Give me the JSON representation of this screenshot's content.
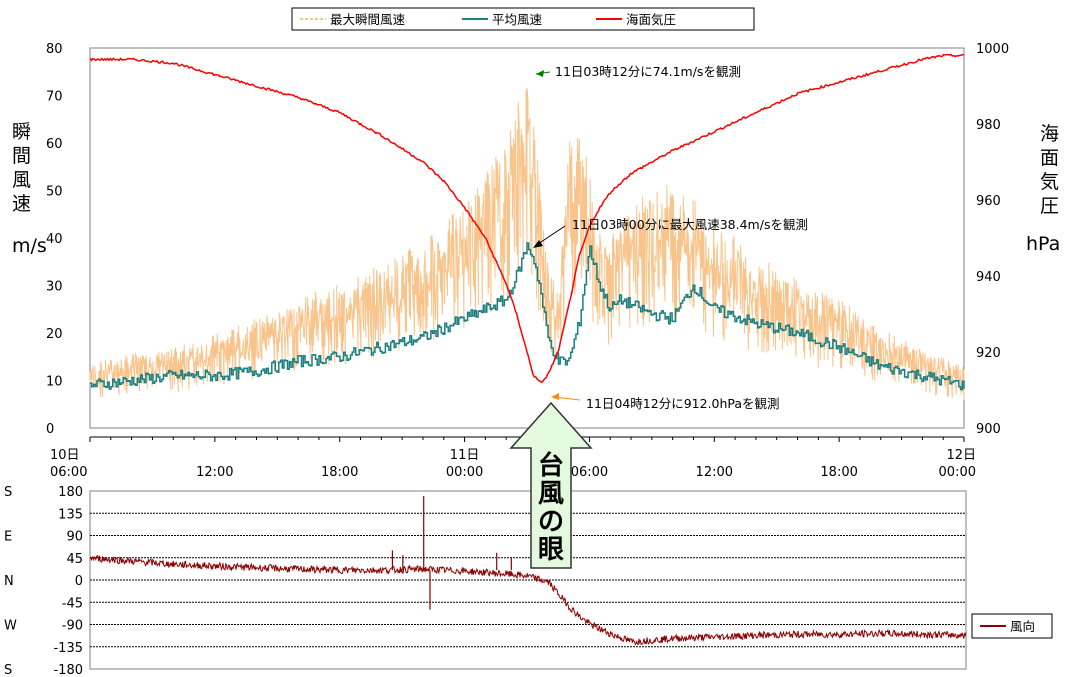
{
  "chart_data": [
    {
      "type": "line",
      "legend": [
        "最大瞬間風速",
        "平均風速",
        "海面気圧"
      ],
      "ylabel_left": "瞬間風速",
      "ylabel_left_unit": "m/s",
      "ylabel_right": "海面気圧",
      "ylabel_right_unit": "hPa",
      "y_left_lim": [
        0,
        80
      ],
      "y_right_lim": [
        900,
        1000
      ],
      "y_left_ticks": [
        "0",
        "10",
        "20",
        "30",
        "40",
        "50",
        "60",
        "70",
        "80"
      ],
      "y_right_ticks": [
        "900",
        "920",
        "940",
        "960",
        "980",
        "1000"
      ],
      "x_ticks": [
        {
          "line1": "10日",
          "line2": "06:00"
        },
        {
          "line1": "",
          "line2": "12:00"
        },
        {
          "line1": "",
          "line2": "18:00"
        },
        {
          "line1": "11日",
          "line2": "00:00"
        },
        {
          "line1": "",
          "line2": "06:00"
        },
        {
          "line1": "",
          "line2": "12:00"
        },
        {
          "line1": "",
          "line2": "18:00"
        },
        {
          "line1": "12日",
          "line2": "00:00"
        }
      ],
      "x_range_hours": [
        0,
        42
      ],
      "series": [
        {
          "name": "最大瞬間風速",
          "color": "#f9c48b",
          "x": [
            0,
            2,
            4,
            6,
            8,
            10,
            12,
            14,
            16,
            18,
            19,
            20,
            20.5,
            21,
            21.3,
            21.6,
            22,
            22.5,
            23,
            23.5,
            24,
            24.5,
            25,
            26,
            28,
            30,
            32,
            34,
            36,
            38,
            40,
            42
          ],
          "y": [
            13,
            15,
            16,
            19,
            22,
            26,
            29,
            33,
            38,
            45,
            52,
            58,
            65,
            73,
            65,
            52,
            35,
            28,
            58,
            64,
            52,
            40,
            38,
            46,
            50,
            42,
            35,
            30,
            26,
            20,
            16,
            13
          ]
        },
        {
          "name": "平均風速",
          "color": "#1a7f7f",
          "x": [
            0,
            2,
            4,
            6,
            8,
            10,
            12,
            14,
            16,
            17,
            18,
            19,
            20,
            20.5,
            21,
            21.3,
            21.6,
            22,
            22.5,
            23,
            23.5,
            24,
            24.5,
            25,
            25.5,
            26,
            27,
            28,
            29,
            30,
            32,
            34,
            36,
            38,
            40,
            42
          ],
          "y": [
            9,
            10,
            11,
            11,
            12,
            14,
            15,
            17,
            19,
            21,
            23,
            25,
            27,
            32,
            38.4,
            36,
            30,
            19,
            14,
            14,
            22,
            38,
            30,
            25,
            27,
            26,
            24,
            23,
            30,
            25,
            22,
            20,
            17,
            13,
            11,
            9
          ]
        },
        {
          "name": "海面気圧",
          "color": "#ff0000",
          "x": [
            0,
            2,
            4,
            6,
            8,
            10,
            12,
            14,
            16,
            17,
            18,
            19,
            20,
            20.5,
            21,
            21.3,
            21.6,
            21.8,
            22,
            22.5,
            23,
            23.5,
            24,
            24.5,
            25,
            26,
            28,
            30,
            32,
            34,
            36,
            38,
            40,
            41,
            42
          ],
          "y": [
            997,
            997,
            996,
            993,
            990,
            987,
            983,
            977,
            970,
            965,
            958,
            950,
            938,
            930,
            920,
            914,
            912,
            912.5,
            914,
            920,
            932,
            945,
            953,
            958,
            962,
            967,
            973,
            978,
            983,
            988,
            991,
            994,
            997,
            998,
            998
          ]
        }
      ],
      "annotations": [
        "11日03時12分に74.1m/sを観測",
        "11日03時00分に最大風速38.4m/sを観測",
        "11日04時12分に912.0hPaを観測"
      ],
      "callout": "台風の眼"
    },
    {
      "type": "line",
      "legend": [
        "風向"
      ],
      "y_lim": [
        -180,
        180
      ],
      "y_ticks": [
        {
          "value": 180,
          "dir": "S",
          "label": "180"
        },
        {
          "value": 135,
          "dir": "",
          "label": "135"
        },
        {
          "value": 90,
          "dir": "E",
          "label": "90"
        },
        {
          "value": 45,
          "dir": "",
          "label": "45"
        },
        {
          "value": 0,
          "dir": "N",
          "label": "0"
        },
        {
          "value": -45,
          "dir": "",
          "label": "-45"
        },
        {
          "value": -90,
          "dir": "W",
          "label": "-90"
        },
        {
          "value": -135,
          "dir": "",
          "label": "-135"
        },
        {
          "value": -180,
          "dir": "S",
          "label": "-180"
        }
      ],
      "series": [
        {
          "name": "風向",
          "color": "#8b0000",
          "x": [
            0,
            2,
            4,
            6,
            8,
            10,
            12,
            14,
            16,
            18,
            19,
            20,
            21,
            22,
            23,
            23.5,
            24,
            25,
            26,
            28,
            30,
            32,
            34,
            36,
            38,
            40,
            42
          ],
          "y": [
            45,
            38,
            32,
            28,
            25,
            22,
            20,
            20,
            22,
            18,
            15,
            12,
            8,
            -5,
            -55,
            -75,
            -90,
            -110,
            -125,
            -118,
            -115,
            -112,
            -110,
            -110,
            -108,
            -110,
            -112
          ]
        }
      ]
    }
  ]
}
